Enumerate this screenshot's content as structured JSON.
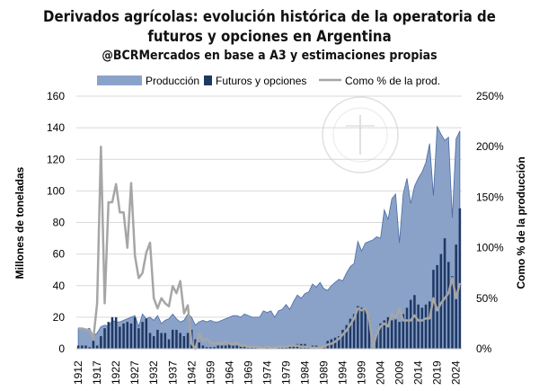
{
  "chart_data": {
    "type": "bar+area+line",
    "title": "Derivados agrícolas: evolución histórica de la operatoria de futuros y opciones en Argentina",
    "subtitle": "@BCRMercados en base a A3 y estimaciones propias",
    "ylabel": "Millones de toneladas",
    "y2label": "Como % de la producción",
    "ylim": [
      0,
      160
    ],
    "y2lim": [
      0,
      250
    ],
    "yticks": [
      "0",
      "20",
      "40",
      "60",
      "80",
      "100",
      "120",
      "140",
      "160"
    ],
    "y2ticks": [
      "0%",
      "50%",
      "100%",
      "150%",
      "200%",
      "250%"
    ],
    "xticklabels": [
      "1912",
      "1917",
      "1922",
      "1927",
      "1932",
      "1937",
      "1942",
      "1959",
      "1964",
      "1969",
      "1974",
      "1979",
      "1984",
      "1989",
      "1994",
      "1999",
      "2004",
      "2009",
      "2014",
      "2019",
      "2024"
    ],
    "grid": true,
    "legend_position": "top",
    "watermark": "BOLSA DE COMERCIO DE ROSARIO",
    "colors": {
      "production": "#8aa2c8",
      "futures": "#1f3864",
      "pct": "#a6a6a6"
    },
    "x": [
      1912,
      1913,
      1914,
      1915,
      1916,
      1917,
      1918,
      1919,
      1920,
      1921,
      1922,
      1923,
      1924,
      1925,
      1926,
      1927,
      1928,
      1929,
      1930,
      1931,
      1932,
      1933,
      1934,
      1935,
      1936,
      1937,
      1938,
      1939,
      1940,
      1941,
      1942,
      1943,
      1944,
      1957,
      1958,
      1959,
      1960,
      1961,
      1962,
      1963,
      1964,
      1965,
      1966,
      1967,
      1968,
      1969,
      1970,
      1971,
      1972,
      1973,
      1974,
      1975,
      1976,
      1977,
      1978,
      1979,
      1980,
      1981,
      1982,
      1983,
      1984,
      1985,
      1986,
      1987,
      1988,
      1989,
      1990,
      1991,
      1992,
      1993,
      1994,
      1995,
      1996,
      1997,
      1998,
      1999,
      2000,
      2001,
      2002,
      2003,
      2004,
      2005,
      2006,
      2007,
      2008,
      2009,
      2010,
      2011,
      2012,
      2013,
      2014,
      2015,
      2016,
      2017,
      2018,
      2019,
      2020,
      2021,
      2022,
      2023,
      2024,
      2025
    ],
    "series": [
      {
        "name": "Producción",
        "kind": "area",
        "values": [
          13,
          13,
          12,
          13,
          8,
          10,
          14,
          15,
          14,
          18,
          17,
          17,
          18,
          19,
          20,
          21,
          14,
          22,
          19,
          20,
          18,
          21,
          16,
          18,
          19,
          22,
          19,
          17,
          18,
          22,
          20,
          15,
          17,
          18,
          17,
          18,
          17,
          17,
          18,
          19,
          20,
          21,
          21,
          20,
          22,
          21,
          20,
          20,
          20,
          24,
          23,
          24,
          20,
          24,
          25,
          28,
          25,
          30,
          34,
          32,
          35,
          36,
          41,
          39,
          42,
          38,
          37,
          40,
          42,
          44,
          43,
          48,
          52,
          54,
          68,
          62,
          67,
          68,
          69,
          71,
          70,
          88,
          82,
          95,
          98,
          67,
          98,
          108,
          92,
          103,
          108,
          112,
          118,
          130,
          97,
          141,
          136,
          132,
          134,
          83,
          133,
          138
        ]
      },
      {
        "name": "Futuros y opciones",
        "kind": "bar",
        "values": [
          2,
          2,
          2,
          1,
          5,
          2,
          8,
          13,
          17,
          20,
          20,
          14,
          16,
          17,
          16,
          20,
          13,
          17,
          19,
          10,
          8,
          12,
          10,
          10,
          6,
          12,
          12,
          10,
          8,
          10,
          12,
          6,
          4,
          2,
          1,
          1,
          1,
          2,
          2,
          2,
          3,
          3,
          2,
          2,
          2,
          2,
          1,
          1,
          1,
          1,
          1,
          1,
          1,
          1,
          2,
          2,
          2,
          2,
          3,
          3,
          3,
          2,
          2,
          2,
          1,
          1,
          5,
          6,
          7,
          8,
          12,
          15,
          19,
          22,
          27,
          26,
          25,
          20,
          1,
          10,
          16,
          18,
          20,
          18,
          20,
          17,
          22,
          26,
          31,
          34,
          28,
          26,
          28,
          30,
          50,
          53,
          60,
          70,
          55,
          46,
          66,
          89
        ]
      },
      {
        "name": "Como % de la prod.",
        "kind": "line",
        "axis": "right",
        "values": [
          20,
          20,
          19,
          18,
          10,
          45,
          200,
          45,
          145,
          145,
          163,
          135,
          135,
          100,
          164,
          92,
          70,
          75,
          95,
          105,
          50,
          40,
          50,
          45,
          42,
          62,
          55,
          67,
          35,
          43,
          5,
          0,
          15,
          8,
          10,
          6,
          5,
          6,
          5,
          7,
          5,
          4,
          6,
          3,
          3,
          2,
          2,
          2,
          1,
          1,
          2,
          1,
          1,
          2,
          2,
          2,
          3,
          3,
          3,
          2,
          2,
          2,
          1,
          1,
          1,
          2,
          4,
          5,
          7,
          10,
          14,
          18,
          24,
          30,
          40,
          38,
          40,
          30,
          1,
          15,
          22,
          25,
          22,
          35,
          30,
          40,
          28,
          28,
          28,
          33,
          28,
          28,
          30,
          30,
          50,
          38,
          45,
          50,
          55,
          70,
          50,
          65
        ]
      }
    ]
  }
}
